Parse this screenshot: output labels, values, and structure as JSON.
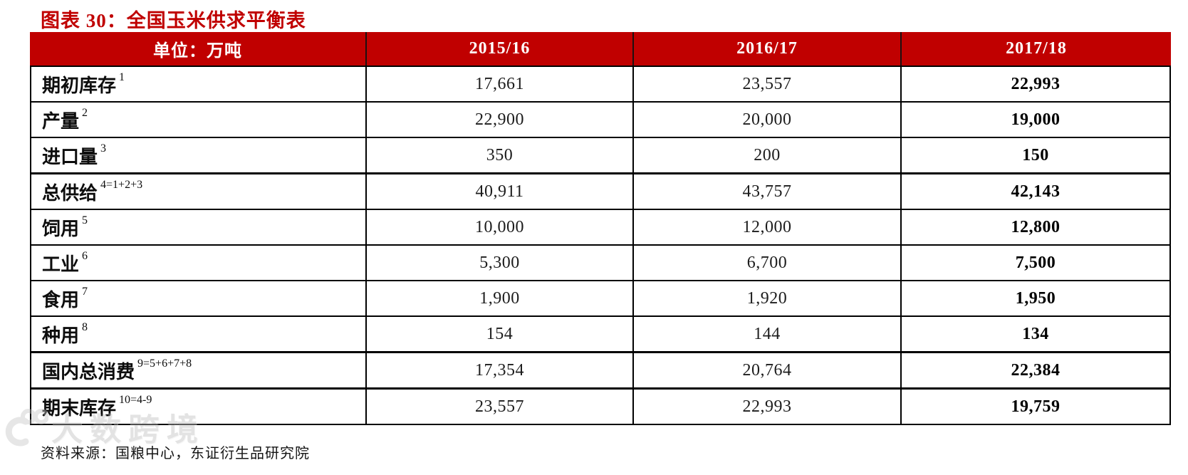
{
  "colors": {
    "accent_red": "#c00000",
    "header_text": "#ffffff",
    "border": "#000000",
    "body_text": "#1c1c1c"
  },
  "chart_data": {
    "type": "table",
    "title": "图表 30：全国玉米供求平衡表",
    "unit_label": "单位：万吨",
    "columns": [
      "单位：万吨",
      "2015/16",
      "2016/17",
      "2017/18"
    ],
    "rows": [
      {
        "label": "期初库存",
        "sup": "1",
        "values": [
          "17,661",
          "23,557",
          "22,993"
        ],
        "total": false
      },
      {
        "label": "产量",
        "sup": "2",
        "values": [
          "22,900",
          "20,000",
          "19,000"
        ],
        "total": false
      },
      {
        "label": "进口量",
        "sup": "3",
        "values": [
          "350",
          "200",
          "150"
        ],
        "total": false
      },
      {
        "label": "总供给",
        "sup": "4=1+2+3",
        "values": [
          "40,911",
          "43,757",
          "42,143"
        ],
        "total": true
      },
      {
        "label": "饲用",
        "sup": "5",
        "values": [
          "10,000",
          "12,000",
          "12,800"
        ],
        "total": false
      },
      {
        "label": "工业",
        "sup": "6",
        "values": [
          "5,300",
          "6,700",
          "7,500"
        ],
        "total": false
      },
      {
        "label": "食用",
        "sup": "7",
        "values": [
          "1,900",
          "1,920",
          "1,950"
        ],
        "total": false
      },
      {
        "label": "种用",
        "sup": "8",
        "values": [
          "154",
          "144",
          "134"
        ],
        "total": false
      },
      {
        "label": "国内总消费",
        "sup": "9=5+6+7+8",
        "values": [
          "17,354",
          "20,764",
          "22,384"
        ],
        "total": true
      },
      {
        "label": "期末库存",
        "sup": "10=4-9",
        "values": [
          "23,557",
          "22,993",
          "19,759"
        ],
        "total": true
      }
    ],
    "source": "资料来源：国粮中心，东证衍生品研究院"
  },
  "watermark": {
    "text": "大数跨境"
  }
}
